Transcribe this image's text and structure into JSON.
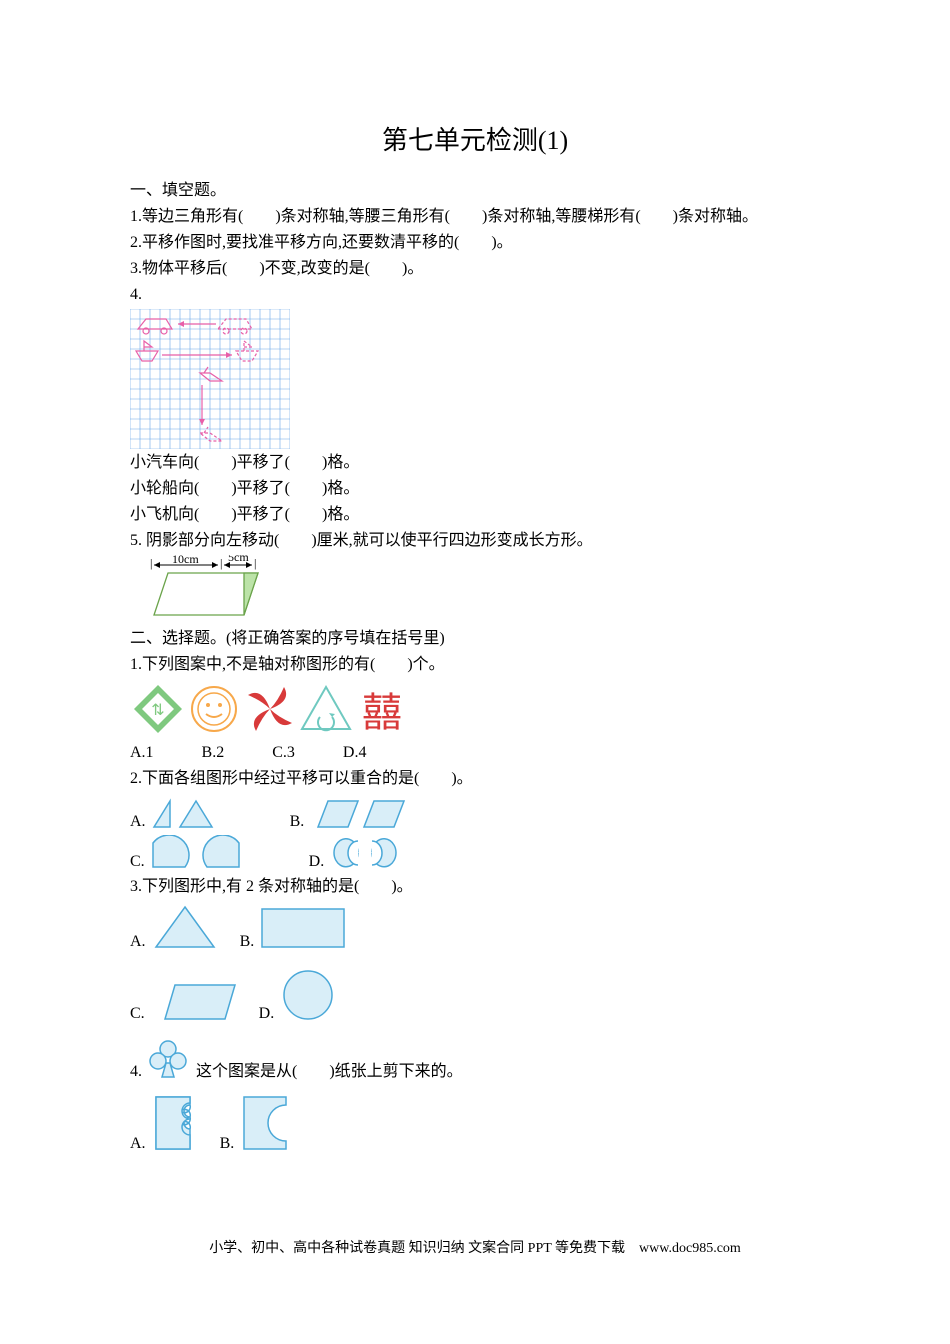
{
  "colors": {
    "text": "#000000",
    "grid": "#6aa7e8",
    "shape_pink": "#e85fa8",
    "shape_blue_stroke": "#4aa8d8",
    "shape_blue_fill": "#d9eef8",
    "icon_green": "#7fc97f",
    "icon_orange": "#f7a84a",
    "icon_red": "#d83a3a",
    "icon_teal": "#6fc9c0",
    "paral_fill": "#bce3a8",
    "paral_stroke": "#6aa34a"
  },
  "title": "第七单元检测(1)",
  "s1": {
    "heading": "一、填空题。",
    "q1": "1.等边三角形有(　　)条对称轴,等腰三角形有(　　)条对称轴,等腰梯形有(　　)条对称轴。",
    "q2": "2.平移作图时,要找准平移方向,还要数清平移的(　　)。",
    "q3": "3.物体平移后(　　)不变,改变的是(　　)。",
    "q4": "4.",
    "q4a": "小汽车向(　　)平移了(　　)格。",
    "q4b": "小轮船向(　　)平移了(　　)格。",
    "q4c": "小飞机向(　　)平移了(　　)格。",
    "q5": "5. 阴影部分向左移动(　　)厘米,就可以使平行四边形变成长方形。",
    "q5_label_10": "10cm",
    "q5_label_5": "5cm"
  },
  "s2": {
    "heading": "二、选择题。(将正确答案的序号填在括号里)",
    "q1": "1.下列图案中,不是轴对称图形的有(　　)个。",
    "q1opts": "A.1　　　B.2　　　C.3　　　D.4",
    "q2": "2.下面各组图形中经过平移可以重合的是(　　)。",
    "q3": "3.下列图形中,有 2 条对称轴的是(　　)。",
    "q4a": "4.",
    "q4b": "这个图案是从(　　)纸张上剪下来的。",
    "xi": "囍"
  },
  "labels": {
    "A": "A.",
    "B": "B.",
    "C": "C.",
    "D": "D."
  },
  "footer": "小学、初中、高中各种试卷真题 知识归纳 文案合同 PPT 等免费下载　www.doc985.com"
}
